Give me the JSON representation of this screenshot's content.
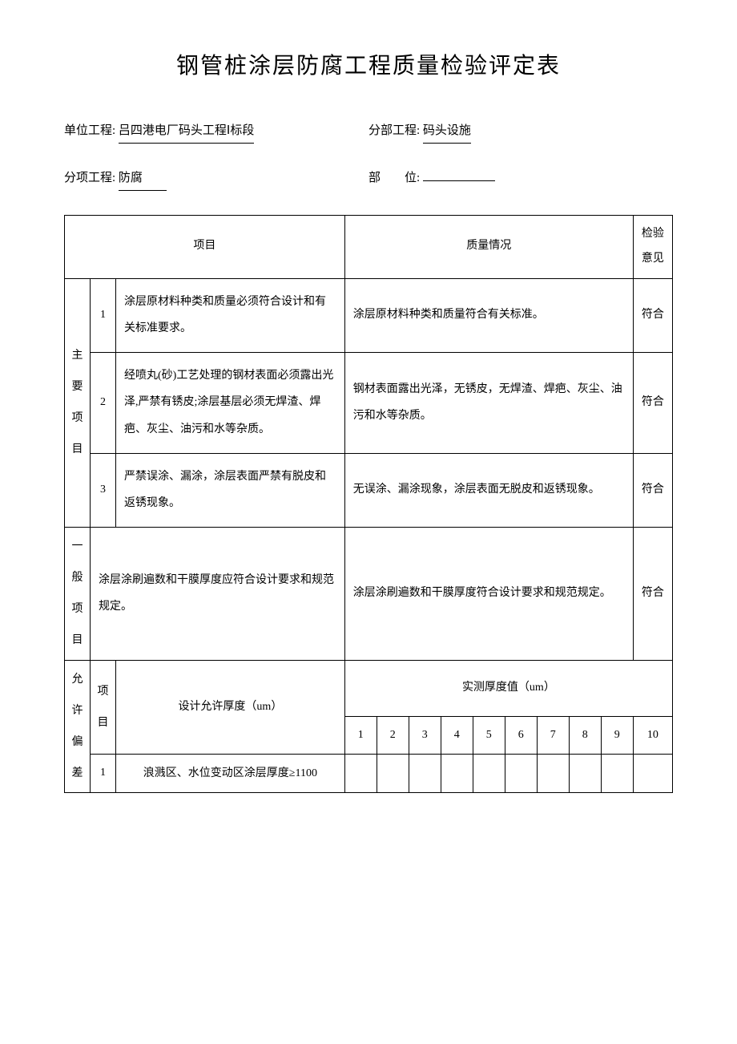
{
  "title": "钢管桩涂层防腐工程质量检验评定表",
  "meta": {
    "unit_label": "单位工程:",
    "unit_value": "吕四港电厂码头工程Ⅰ标段",
    "section_label": "分部工程:",
    "section_value": "码头设施",
    "item_label": "分项工程:",
    "item_value": "防腐",
    "position_label": "部　　位:",
    "position_value": ""
  },
  "headers": {
    "project": "项目",
    "quality": "质量情况",
    "opinion": "检验意见"
  },
  "main_items": {
    "label": "主要项目",
    "rows": [
      {
        "num": "1",
        "desc": "涂层原材料种类和质量必须符合设计和有关标准要求。",
        "status": "涂层原材料种类和质量符合有关标准。",
        "opinion": "符合"
      },
      {
        "num": "2",
        "desc": "经喷丸(砂)工艺处理的钢材表面必须露出光泽,严禁有锈皮;涂层基层必须无焊渣、焊疤、灰尘、油污和水等杂质。",
        "status": "钢材表面露出光泽，无锈皮，无焊渣、焊疤、灰尘、油污和水等杂质。",
        "opinion": "符合"
      },
      {
        "num": "3",
        "desc": "严禁误涂、漏涂，涂层表面严禁有脱皮和返锈现象。",
        "status": "无误涂、漏涂现象，涂层表面无脱皮和返锈现象。",
        "opinion": "符合"
      }
    ]
  },
  "general_items": {
    "label": "一般项目",
    "rows": [
      {
        "desc": "涂层涂刷遍数和干膜厚度应符合设计要求和规范规定。",
        "status": "涂层涂刷遍数和干膜厚度符合设计要求和规范规定。",
        "opinion": "符合"
      }
    ]
  },
  "tolerance": {
    "label": "允许偏差",
    "sub_label": "项目",
    "design_label": "设计允许厚度（um）",
    "measure_header": "实测厚度值（um）",
    "nums": [
      "1",
      "2",
      "3",
      "4",
      "5",
      "6",
      "7",
      "8",
      "9",
      "10"
    ],
    "rows": [
      {
        "num": "1",
        "desc": "浪溅区、水位变动区涂层厚度≥1100"
      }
    ]
  },
  "colors": {
    "background": "#ffffff",
    "text": "#000000",
    "border": "#000000"
  },
  "typography": {
    "title_fontsize": 28,
    "body_fontsize": 14,
    "meta_fontsize": 15,
    "font_family": "SimSun"
  }
}
